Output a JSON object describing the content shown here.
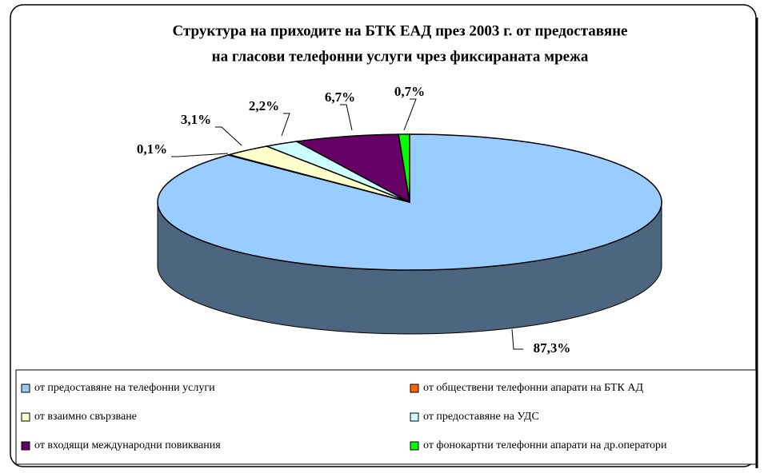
{
  "chart_data": {
    "type": "pie3d",
    "title": [
      "Структура на приходите на БТК ЕАД през 2003 г. от предоставяне",
      "на гласови телефонни услуги чрез фиксираната мрежа"
    ],
    "categories": [
      "от предоставяне на телефонни услуги",
      "от обществени телефонни апарати на БТК АД",
      "от взаимно свързване",
      "от предоставяне на УДС",
      "от входящи международни повиквания",
      "от фонокартни телефонни апарати на др.оператори"
    ],
    "values": [
      87.3,
      0.1,
      3.1,
      2.2,
      6.7,
      0.7
    ],
    "value_labels": [
      "87,3%",
      "0,1%",
      "3,1%",
      "2,2%",
      "6,7%",
      "0,7%"
    ],
    "colors": [
      "#99ccff",
      "#ff6600",
      "#ffffcc",
      "#ccffff",
      "#660066",
      "#00ff00"
    ],
    "legend": "bottom"
  }
}
